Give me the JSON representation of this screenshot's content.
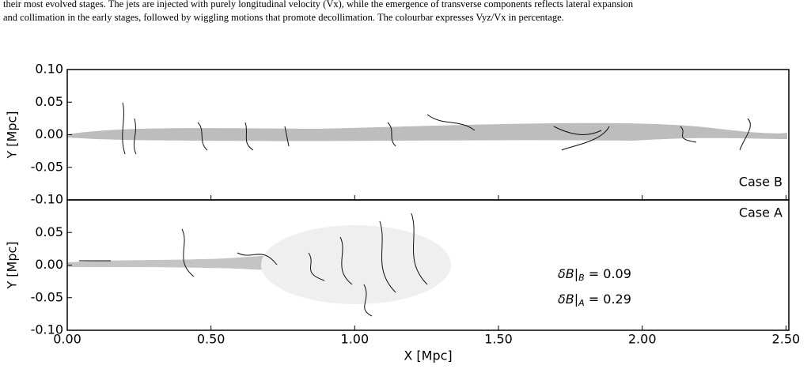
{
  "caption": [
    "their most evolved stages. The jets are injected with purely longitudinal velocity (Vx), while the emergence of transverse components reflects lateral expansion",
    "and collimation in the early stages, followed by wiggling motions that promote decollimation. The colourbar expresses Vyz/Vx in percentage."
  ],
  "chart_data": [
    {
      "type": "image",
      "ylabel": "Y [Mpc]",
      "annotation": "Case B",
      "xlim": [
        0,
        2.51
      ],
      "ylim": [
        -0.1,
        0.1
      ],
      "yticks": [
        {
          "value": 0.1,
          "label": "0.10"
        },
        {
          "value": 0.05,
          "label": "0.05"
        },
        {
          "value": 0,
          "label": "0.00"
        },
        {
          "value": -0.05,
          "label": "-0.05"
        },
        {
          "value": -0.1,
          "label": "-0.10"
        }
      ]
    },
    {
      "type": "image",
      "ylabel": "Y [Mpc]",
      "xlabel": "X [Mpc]",
      "annotation": "Case A",
      "xlim": [
        0,
        2.51
      ],
      "ylim": [
        -0.1,
        0.1
      ],
      "yticks": [
        {
          "value": 0.1,
          "label": "0.10"
        },
        {
          "value": 0.05,
          "label": "0.05"
        },
        {
          "value": 0,
          "label": "0.00"
        },
        {
          "value": -0.05,
          "label": "-0.05"
        },
        {
          "value": -0.1,
          "label": "-0.10"
        }
      ],
      "xticks": [
        {
          "value": 0,
          "label": "0.00"
        },
        {
          "value": 0.5,
          "label": "0.50"
        },
        {
          "value": 1,
          "label": "1.00"
        },
        {
          "value": 1.5,
          "label": "1.50"
        },
        {
          "value": 2,
          "label": "2.00"
        },
        {
          "value": 2.5,
          "label": "2.50"
        }
      ],
      "notes": [
        {
          "symbol": "δB|",
          "sub": "B",
          "rest": " = 0.09"
        },
        {
          "symbol": "δB|",
          "sub": "A",
          "rest": " = 0.29"
        }
      ]
    }
  ]
}
